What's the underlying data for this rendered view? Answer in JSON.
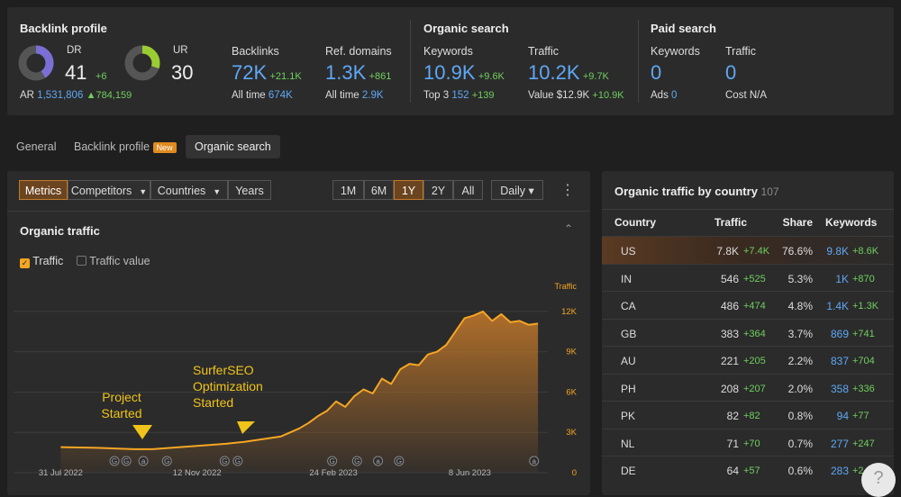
{
  "summary": {
    "backlink_profile": {
      "title": "Backlink profile",
      "dr": {
        "label": "DR",
        "value": "41",
        "delta": "+6"
      },
      "ur": {
        "label": "UR",
        "value": "30"
      },
      "ar": {
        "label": "AR",
        "value": "1,531,806",
        "delta": "784,159"
      },
      "backlinks": {
        "label": "Backlinks",
        "value": "72K",
        "delta": "+21.1K",
        "sub_label": "All time",
        "sub_value": "674K"
      },
      "ref_domains": {
        "label": "Ref. domains",
        "value": "1.3K",
        "delta": "+861",
        "sub_label": "All time",
        "sub_value": "2.9K"
      }
    },
    "organic_search": {
      "title": "Organic search",
      "keywords": {
        "label": "Keywords",
        "value": "10.9K",
        "delta": "+9.6K",
        "sub_label": "Top 3",
        "sub_value": "152",
        "sub_delta": "+139"
      },
      "traffic": {
        "label": "Traffic",
        "value": "10.2K",
        "delta": "+9.7K",
        "sub_label": "Value",
        "sub_value": "$12.9K",
        "sub_delta": "+10.9K"
      }
    },
    "paid_search": {
      "title": "Paid search",
      "keywords": {
        "label": "Keywords",
        "value": "0",
        "sub_label": "Ads",
        "sub_value": "0"
      },
      "traffic": {
        "label": "Traffic",
        "value": "0",
        "sub_label": "Cost",
        "sub_value": "N/A"
      }
    }
  },
  "tabs": [
    "General",
    "Backlink profile",
    "Organic search"
  ],
  "tab_badge": "New",
  "toolbar": {
    "views": [
      "Metrics",
      "Competitors",
      "Countries",
      "Years"
    ],
    "ranges": [
      "1M",
      "6M",
      "1Y",
      "2Y",
      "All"
    ],
    "interval": "Daily"
  },
  "chart_data": {
    "type": "area",
    "title": "Organic traffic",
    "y_label": "Traffic",
    "series": [
      {
        "name": "Traffic",
        "color": "#f5a623",
        "values": [
          1900,
          1850,
          1750,
          1750,
          1850,
          1950,
          2050,
          2150,
          2300,
          2500,
          2700,
          3300,
          3700,
          4200,
          4600,
          5300,
          4900,
          5700,
          6200,
          5900,
          7000,
          6600,
          7700,
          8100,
          8000,
          8800,
          9000,
          9500,
          10500,
          11500,
          11700,
          12000,
          11300,
          11800,
          11200,
          11300,
          11000,
          11100
        ]
      }
    ],
    "unchecked_series": [
      "Traffic value"
    ],
    "x": [
      "2022-07-31",
      "2022-08-28",
      "2022-09-25",
      "2022-10-09",
      "2022-10-23",
      "2022-11-06",
      "2022-11-20",
      "2022-12-04",
      "2022-12-18",
      "2023-01-01",
      "2023-01-15",
      "2023-01-29",
      "2023-02-05",
      "2023-02-12",
      "2023-02-19",
      "2023-02-26",
      "2023-03-05",
      "2023-03-12",
      "2023-03-19",
      "2023-03-26",
      "2023-04-02",
      "2023-04-09",
      "2023-04-16",
      "2023-04-23",
      "2023-04-30",
      "2023-05-07",
      "2023-05-14",
      "2023-05-21",
      "2023-05-28",
      "2023-06-04",
      "2023-06-11",
      "2023-06-18",
      "2023-06-25",
      "2023-07-02",
      "2023-07-09",
      "2023-07-16",
      "2023-07-23",
      "2023-07-30"
    ],
    "xlim": [
      "2022-06-25",
      "2023-08-01"
    ],
    "xticks": [
      {
        "value": "2022-07-31",
        "label": "31 Jul 2022"
      },
      {
        "value": "2022-11-12",
        "label": "12 Nov 2022"
      },
      {
        "value": "2023-02-24",
        "label": "24 Feb 2023"
      },
      {
        "value": "2023-06-08",
        "label": "8 Jun 2023"
      }
    ],
    "ylim": [
      0,
      13000
    ],
    "yticks": [
      0,
      {
        "value": 3000,
        "label": "3K"
      },
      {
        "value": 6000,
        "label": "6K"
      },
      {
        "value": 9000,
        "label": "9K"
      },
      {
        "value": 12000,
        "label": "12K"
      }
    ],
    "grid": true,
    "markers": [
      {
        "x": "2022-09-10",
        "label": "G"
      },
      {
        "x": "2022-09-19",
        "label": "G"
      },
      {
        "x": "2022-10-02",
        "label": "a"
      },
      {
        "x": "2022-10-20",
        "label": "G"
      },
      {
        "x": "2022-12-03",
        "label": "G"
      },
      {
        "x": "2022-12-13",
        "label": "G"
      },
      {
        "x": "2023-02-23",
        "label": "G"
      },
      {
        "x": "2023-03-14",
        "label": "G"
      },
      {
        "x": "2023-03-30",
        "label": "a"
      },
      {
        "x": "2023-04-15",
        "label": "G"
      },
      {
        "x": "2023-07-27",
        "label": "a"
      }
    ],
    "annotations": [
      "Project Started",
      "SurferSEO Optimization Started"
    ]
  },
  "country_table": {
    "title": "Organic traffic by country",
    "count": "107",
    "columns": [
      "Country",
      "Traffic",
      "Share",
      "Keywords"
    ],
    "rows": [
      [
        "US",
        "7.8K",
        "+7.4K",
        "76.6%",
        "9.8K",
        "+8.6K"
      ],
      [
        "IN",
        "546",
        "+525",
        "5.3%",
        "1K",
        "+870"
      ],
      [
        "CA",
        "486",
        "+474",
        "4.8%",
        "1.4K",
        "+1.3K"
      ],
      [
        "GB",
        "383",
        "+364",
        "3.7%",
        "869",
        "+741"
      ],
      [
        "AU",
        "221",
        "+205",
        "2.2%",
        "837",
        "+704"
      ],
      [
        "PH",
        "208",
        "+207",
        "2.0%",
        "358",
        "+336"
      ],
      [
        "PK",
        "82",
        "+82",
        "0.8%",
        "94",
        "+77"
      ],
      [
        "NL",
        "71",
        "+70",
        "0.7%",
        "277",
        "+247"
      ],
      [
        "DE",
        "64",
        "+57",
        "0.6%",
        "283",
        "+2"
      ]
    ]
  },
  "help": "?"
}
